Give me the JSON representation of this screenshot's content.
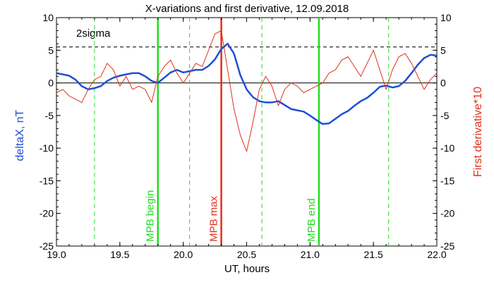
{
  "chart_data": {
    "type": "line",
    "title": "X-variations and first derivative, 12.09.2018",
    "xlabel": "UT, hours",
    "ylabel_left": "deltaX, nT",
    "ylabel_right": "First derivative*10",
    "xlim": [
      19.0,
      22.0
    ],
    "ylim": [
      -25,
      10
    ],
    "x_ticks": [
      "19.0",
      "19.5",
      "20.0",
      "20.5",
      "21.0",
      "21.5",
      "22.0"
    ],
    "x_tick_values": [
      19.0,
      19.5,
      20.0,
      20.5,
      21.0,
      21.5,
      22.0
    ],
    "y_ticks": [
      "10",
      "5",
      "0",
      "-5",
      "-10",
      "-15",
      "-20",
      "-25"
    ],
    "y_tick_values": [
      10,
      5,
      0,
      -5,
      -10,
      -15,
      -20,
      -25
    ],
    "grid": false,
    "colors": {
      "deltaX": "#1f4fd6",
      "derivative": "#e0301a",
      "mpb_lines": "#22dd22",
      "max_line": "#e0301a",
      "sigma": "#000000",
      "zero": "#000000"
    },
    "sigma_label": "2sigma",
    "sigma_value": 5.5,
    "series": [
      {
        "key": "deltaX",
        "x": [
          19.0,
          19.05,
          19.1,
          19.15,
          19.2,
          19.25,
          19.3,
          19.35,
          19.4,
          19.45,
          19.5,
          19.55,
          19.6,
          19.65,
          19.7,
          19.75,
          19.8,
          19.85,
          19.9,
          19.95,
          20.0,
          20.05,
          20.1,
          20.15,
          20.2,
          20.25,
          20.3,
          20.35,
          20.4,
          20.45,
          20.5,
          20.55,
          20.6,
          20.65,
          20.7,
          20.75,
          20.8,
          20.85,
          20.9,
          20.95,
          21.0,
          21.05,
          21.1,
          21.15,
          21.2,
          21.25,
          21.3,
          21.35,
          21.4,
          21.45,
          21.5,
          21.55,
          21.6,
          21.65,
          21.7,
          21.75,
          21.8,
          21.85,
          21.9,
          21.95,
          22.0
        ],
        "y": [
          1.5,
          1.3,
          1.1,
          0.5,
          -0.5,
          -1.0,
          -0.8,
          -0.5,
          0.3,
          0.8,
          1.1,
          1.3,
          1.5,
          1.5,
          1.0,
          0.3,
          0.0,
          0.8,
          1.6,
          2.0,
          1.6,
          1.8,
          2.0,
          2.0,
          2.6,
          3.6,
          5.2,
          6.0,
          4.5,
          1.2,
          -1.0,
          -2.2,
          -2.8,
          -3.0,
          -3.0,
          -2.8,
          -3.4,
          -4.0,
          -4.2,
          -4.4,
          -5.0,
          -5.7,
          -6.3,
          -6.2,
          -5.5,
          -4.8,
          -4.3,
          -3.5,
          -2.8,
          -2.3,
          -1.5,
          -0.6,
          -0.4,
          -0.7,
          -0.5,
          0.3,
          1.5,
          2.8,
          3.8,
          4.3,
          4.2
        ]
      },
      {
        "key": "derivative",
        "x": [
          19.0,
          19.05,
          19.1,
          19.15,
          19.2,
          19.25,
          19.3,
          19.35,
          19.4,
          19.45,
          19.5,
          19.55,
          19.6,
          19.65,
          19.7,
          19.75,
          19.8,
          19.85,
          19.9,
          19.95,
          20.0,
          20.05,
          20.1,
          20.15,
          20.2,
          20.25,
          20.3,
          20.35,
          20.4,
          20.45,
          20.5,
          20.55,
          20.6,
          20.65,
          20.7,
          20.75,
          20.8,
          20.85,
          20.9,
          20.95,
          21.0,
          21.05,
          21.1,
          21.15,
          21.2,
          21.25,
          21.3,
          21.35,
          21.4,
          21.45,
          21.5,
          21.55,
          21.6,
          21.65,
          21.7,
          21.75,
          21.8,
          21.85,
          21.9,
          21.95,
          22.0
        ],
        "y": [
          -1.5,
          -1.0,
          -2.0,
          -2.5,
          -3.0,
          -1.0,
          0.5,
          1.0,
          3.0,
          2.0,
          -0.5,
          1.0,
          -1.0,
          -0.5,
          -1.0,
          -3.0,
          1.0,
          2.5,
          3.5,
          1.5,
          0.0,
          1.5,
          3.0,
          2.5,
          5.0,
          7.5,
          8.0,
          2.0,
          -4.0,
          -8.0,
          -10.5,
          -6.0,
          -1.0,
          1.0,
          -0.5,
          -3.5,
          -1.0,
          0.0,
          -0.5,
          -1.5,
          -1.0,
          -0.5,
          0.0,
          1.5,
          2.0,
          3.5,
          4.0,
          2.5,
          1.0,
          3.0,
          5.0,
          2.0,
          -1.0,
          2.0,
          4.0,
          4.5,
          3.0,
          1.0,
          -1.0,
          0.5,
          1.5
        ]
      }
    ],
    "vertical_lines": [
      {
        "x": 19.8,
        "label": "MPB begin",
        "style": "solid",
        "kind": "mpb"
      },
      {
        "x": 20.3,
        "label": "MPB max",
        "style": "solid",
        "kind": "max"
      },
      {
        "x": 21.07,
        "label": "MPB end",
        "style": "solid",
        "kind": "mpb"
      },
      {
        "x": 19.3,
        "label": "",
        "style": "dashed",
        "kind": "mpb"
      },
      {
        "x": 20.05,
        "label": "",
        "style": "dashed",
        "kind": "mpb"
      },
      {
        "x": 20.62,
        "label": "",
        "style": "dashed",
        "kind": "mpb"
      },
      {
        "x": 21.62,
        "label": "",
        "style": "dashed",
        "kind": "mpb"
      }
    ]
  }
}
